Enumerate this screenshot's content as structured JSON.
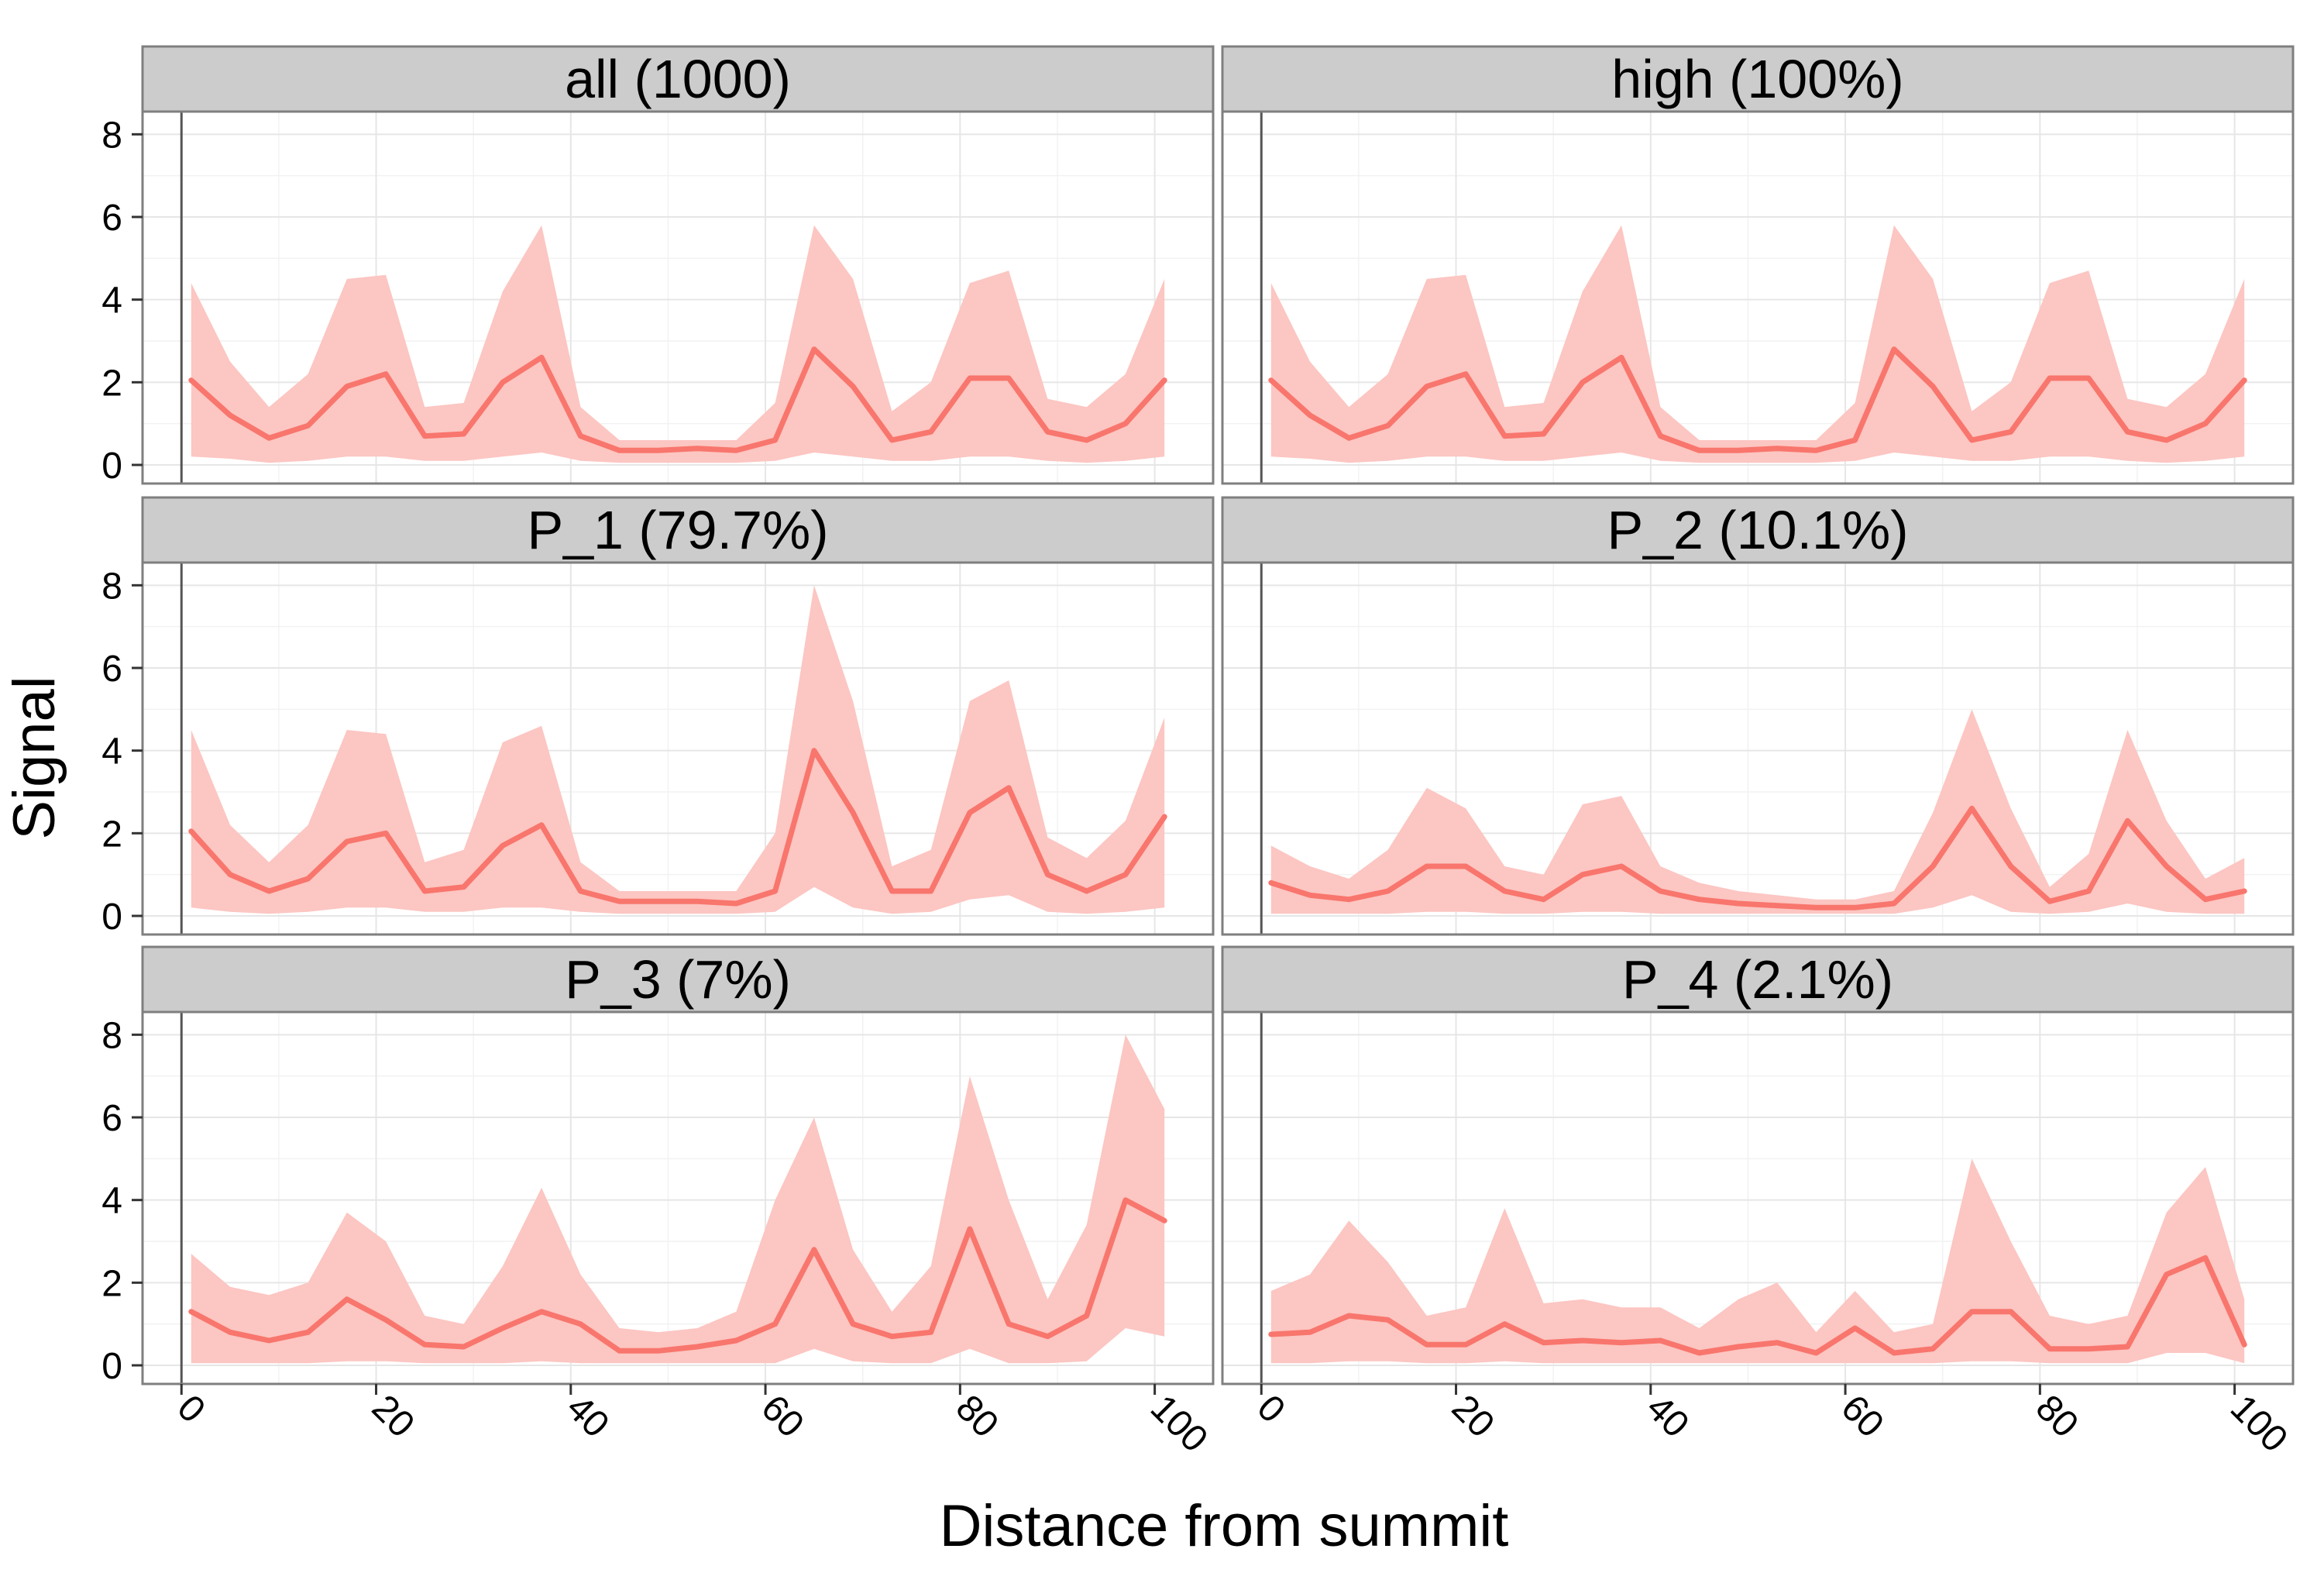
{
  "chart_data": {
    "type": "line",
    "layout": "facet-grid-2x3",
    "xlabel": "Distance from summit",
    "ylabel": "Signal",
    "xlim": [
      -4,
      106
    ],
    "ylim": [
      -0.45,
      8.55
    ],
    "x_ticks": [
      0,
      20,
      40,
      60,
      80,
      100
    ],
    "x_tick_labels": [
      "0",
      "20",
      "40",
      "60",
      "80",
      "100"
    ],
    "y_ticks": [
      0,
      2,
      4,
      6,
      8
    ],
    "y_tick_labels": [
      "0",
      "2",
      "4",
      "6",
      "8"
    ],
    "grid": true,
    "series_color": "#f8766d",
    "band_color": "#fcc6c2",
    "x": [
      1,
      5,
      9,
      13,
      17,
      21,
      25,
      29,
      33,
      37,
      41,
      45,
      49,
      53,
      57,
      61,
      65,
      69,
      73,
      77,
      81,
      85,
      89,
      93,
      97,
      101
    ],
    "panels": [
      {
        "title": "all (1000)",
        "mean": [
          2.05,
          1.2,
          0.65,
          0.95,
          1.9,
          2.2,
          0.7,
          0.75,
          2.0,
          2.6,
          0.7,
          0.35,
          0.35,
          0.4,
          0.35,
          0.6,
          2.8,
          1.9,
          0.6,
          0.8,
          2.1,
          2.1,
          0.8,
          0.6,
          1.0,
          2.05
        ],
        "upper": [
          4.4,
          2.5,
          1.4,
          2.2,
          4.5,
          4.6,
          1.4,
          1.5,
          4.2,
          5.8,
          1.4,
          0.6,
          0.6,
          0.6,
          0.6,
          1.5,
          5.8,
          4.5,
          1.3,
          2.0,
          4.4,
          4.7,
          1.6,
          1.4,
          2.2,
          4.5
        ],
        "lower": [
          0.2,
          0.15,
          0.05,
          0.1,
          0.2,
          0.2,
          0.1,
          0.1,
          0.2,
          0.3,
          0.1,
          0.05,
          0.05,
          0.05,
          0.05,
          0.1,
          0.3,
          0.2,
          0.1,
          0.1,
          0.2,
          0.2,
          0.1,
          0.05,
          0.1,
          0.2
        ]
      },
      {
        "title": "high (100%)",
        "mean": [
          2.05,
          1.2,
          0.65,
          0.95,
          1.9,
          2.2,
          0.7,
          0.75,
          2.0,
          2.6,
          0.7,
          0.35,
          0.35,
          0.4,
          0.35,
          0.6,
          2.8,
          1.9,
          0.6,
          0.8,
          2.1,
          2.1,
          0.8,
          0.6,
          1.0,
          2.05
        ],
        "upper": [
          4.4,
          2.5,
          1.4,
          2.2,
          4.5,
          4.6,
          1.4,
          1.5,
          4.2,
          5.8,
          1.4,
          0.6,
          0.6,
          0.6,
          0.6,
          1.5,
          5.8,
          4.5,
          1.3,
          2.0,
          4.4,
          4.7,
          1.6,
          1.4,
          2.2,
          4.5
        ],
        "lower": [
          0.2,
          0.15,
          0.05,
          0.1,
          0.2,
          0.2,
          0.1,
          0.1,
          0.2,
          0.3,
          0.1,
          0.05,
          0.05,
          0.05,
          0.05,
          0.1,
          0.3,
          0.2,
          0.1,
          0.1,
          0.2,
          0.2,
          0.1,
          0.05,
          0.1,
          0.2
        ]
      },
      {
        "title": "P_1 (79.7%)",
        "mean": [
          2.05,
          1.0,
          0.6,
          0.9,
          1.8,
          2.0,
          0.6,
          0.7,
          1.7,
          2.2,
          0.6,
          0.35,
          0.35,
          0.35,
          0.3,
          0.6,
          4.0,
          2.5,
          0.6,
          0.6,
          2.5,
          3.1,
          1.0,
          0.6,
          1.0,
          2.4
        ],
        "upper": [
          4.5,
          2.2,
          1.3,
          2.2,
          4.5,
          4.4,
          1.3,
          1.6,
          4.2,
          4.6,
          1.3,
          0.6,
          0.6,
          0.6,
          0.6,
          2.0,
          8.0,
          5.2,
          1.2,
          1.6,
          5.2,
          5.7,
          1.9,
          1.4,
          2.3,
          4.8
        ],
        "lower": [
          0.2,
          0.1,
          0.05,
          0.1,
          0.2,
          0.2,
          0.1,
          0.1,
          0.2,
          0.2,
          0.1,
          0.05,
          0.05,
          0.05,
          0.05,
          0.1,
          0.7,
          0.2,
          0.05,
          0.1,
          0.4,
          0.5,
          0.1,
          0.05,
          0.1,
          0.2
        ]
      },
      {
        "title": "P_2 (10.1%)",
        "mean": [
          0.8,
          0.5,
          0.4,
          0.6,
          1.2,
          1.2,
          0.6,
          0.4,
          1.0,
          1.2,
          0.6,
          0.4,
          0.3,
          0.25,
          0.2,
          0.2,
          0.3,
          1.2,
          2.6,
          1.2,
          0.35,
          0.6,
          2.3,
          1.2,
          0.4,
          0.6
        ],
        "upper": [
          1.7,
          1.2,
          0.9,
          1.6,
          3.1,
          2.6,
          1.2,
          1.0,
          2.7,
          2.9,
          1.2,
          0.8,
          0.6,
          0.5,
          0.4,
          0.4,
          0.6,
          2.5,
          5.0,
          2.6,
          0.7,
          1.5,
          4.5,
          2.3,
          0.9,
          1.4
        ],
        "lower": [
          0.05,
          0.05,
          0.05,
          0.05,
          0.1,
          0.1,
          0.05,
          0.05,
          0.1,
          0.1,
          0.05,
          0.05,
          0.05,
          0.05,
          0.05,
          0.05,
          0.05,
          0.2,
          0.5,
          0.1,
          0.05,
          0.1,
          0.3,
          0.1,
          0.05,
          0.05
        ]
      },
      {
        "title": "P_3 (7%)",
        "mean": [
          1.3,
          0.8,
          0.6,
          0.8,
          1.6,
          1.1,
          0.5,
          0.45,
          0.9,
          1.3,
          1.0,
          0.35,
          0.35,
          0.45,
          0.6,
          1.0,
          2.8,
          1.0,
          0.7,
          0.8,
          3.3,
          1.0,
          0.7,
          1.2,
          4.0,
          3.5
        ],
        "upper": [
          2.7,
          1.9,
          1.7,
          2.0,
          3.7,
          3.0,
          1.2,
          1.0,
          2.4,
          4.3,
          2.2,
          0.9,
          0.8,
          0.9,
          1.3,
          4.0,
          6.0,
          2.8,
          1.3,
          2.4,
          7.0,
          4.0,
          1.6,
          3.4,
          8.0,
          6.2
        ],
        "lower": [
          0.05,
          0.05,
          0.05,
          0.05,
          0.1,
          0.1,
          0.05,
          0.05,
          0.05,
          0.1,
          0.05,
          0.05,
          0.05,
          0.05,
          0.05,
          0.05,
          0.4,
          0.1,
          0.05,
          0.05,
          0.4,
          0.05,
          0.05,
          0.1,
          0.9,
          0.7
        ]
      },
      {
        "title": "P_4 (2.1%)",
        "mean": [
          0.75,
          0.8,
          1.2,
          1.1,
          0.5,
          0.5,
          1.0,
          0.55,
          0.6,
          0.55,
          0.6,
          0.3,
          0.45,
          0.55,
          0.3,
          0.9,
          0.3,
          0.4,
          1.3,
          1.3,
          0.4,
          0.4,
          0.45,
          2.2,
          2.6,
          0.5
        ],
        "upper": [
          1.8,
          2.2,
          3.5,
          2.5,
          1.2,
          1.4,
          3.8,
          1.5,
          1.6,
          1.4,
          1.4,
          0.9,
          1.6,
          2.0,
          0.8,
          1.8,
          0.8,
          1.0,
          5.0,
          3.0,
          1.2,
          1.0,
          1.2,
          3.7,
          4.8,
          1.6
        ],
        "lower": [
          0.05,
          0.05,
          0.1,
          0.1,
          0.05,
          0.05,
          0.1,
          0.05,
          0.05,
          0.05,
          0.05,
          0.05,
          0.05,
          0.05,
          0.05,
          0.05,
          0.05,
          0.05,
          0.1,
          0.1,
          0.05,
          0.05,
          0.05,
          0.3,
          0.3,
          0.05
        ]
      }
    ]
  }
}
